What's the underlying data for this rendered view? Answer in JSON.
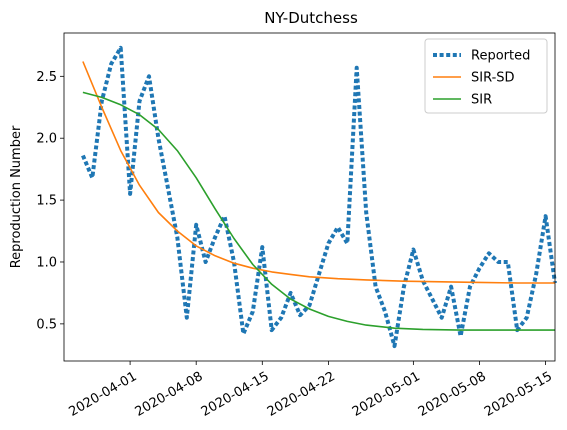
{
  "chart_data": {
    "type": "line",
    "title": "NY-Dutchess",
    "xlabel": "",
    "ylabel": "Reproduction Number",
    "x_ticks": [
      "2020-04-01",
      "2020-04-08",
      "2020-04-15",
      "2020-04-22",
      "2020-05-01",
      "2020-05-08",
      "2020-05-15"
    ],
    "y_ticks": [
      "0.5",
      "1.0",
      "1.5",
      "2.0",
      "2.5"
    ],
    "xlim": [
      "2020-03-25",
      "2020-05-16"
    ],
    "ylim": [
      0.2,
      2.85
    ],
    "grid": false,
    "legend_position": "top-right",
    "series": [
      {
        "name": "Reported",
        "style": "dotted",
        "color": "#1f77b4",
        "points": [
          [
            "2020-03-27",
            1.86
          ],
          [
            "2020-03-28",
            1.68
          ],
          [
            "2020-03-29",
            2.3
          ],
          [
            "2020-03-30",
            2.6
          ],
          [
            "2020-03-31",
            2.73
          ],
          [
            "2020-04-01",
            1.55
          ],
          [
            "2020-04-02",
            2.3
          ],
          [
            "2020-04-03",
            2.5
          ],
          [
            "2020-04-04",
            2.0
          ],
          [
            "2020-04-05",
            1.6
          ],
          [
            "2020-04-06",
            1.2
          ],
          [
            "2020-04-07",
            0.55
          ],
          [
            "2020-04-08",
            1.3
          ],
          [
            "2020-04-09",
            1.0
          ],
          [
            "2020-04-10",
            1.2
          ],
          [
            "2020-04-11",
            1.37
          ],
          [
            "2020-04-12",
            1.0
          ],
          [
            "2020-04-13",
            0.42
          ],
          [
            "2020-04-14",
            0.6
          ],
          [
            "2020-04-15",
            1.12
          ],
          [
            "2020-04-16",
            0.45
          ],
          [
            "2020-04-17",
            0.55
          ],
          [
            "2020-04-18",
            0.75
          ],
          [
            "2020-04-19",
            0.57
          ],
          [
            "2020-04-20",
            0.65
          ],
          [
            "2020-04-21",
            0.9
          ],
          [
            "2020-04-22",
            1.15
          ],
          [
            "2020-04-23",
            1.28
          ],
          [
            "2020-04-24",
            1.15
          ],
          [
            "2020-04-25",
            2.57
          ],
          [
            "2020-04-26",
            1.4
          ],
          [
            "2020-04-27",
            0.8
          ],
          [
            "2020-04-28",
            0.6
          ],
          [
            "2020-04-29",
            0.32
          ],
          [
            "2020-04-30",
            0.8
          ],
          [
            "2020-05-01",
            1.1
          ],
          [
            "2020-05-02",
            0.85
          ],
          [
            "2020-05-03",
            0.7
          ],
          [
            "2020-05-04",
            0.55
          ],
          [
            "2020-05-05",
            0.8
          ],
          [
            "2020-05-06",
            0.4
          ],
          [
            "2020-05-07",
            0.8
          ],
          [
            "2020-05-08",
            0.95
          ],
          [
            "2020-05-09",
            1.07
          ],
          [
            "2020-05-10",
            1.0
          ],
          [
            "2020-05-11",
            1.0
          ],
          [
            "2020-05-12",
            0.45
          ],
          [
            "2020-05-13",
            0.55
          ],
          [
            "2020-05-14",
            0.9
          ],
          [
            "2020-05-15",
            1.37
          ],
          [
            "2020-05-16",
            0.83
          ]
        ]
      },
      {
        "name": "SIR-SD",
        "style": "solid",
        "color": "#ff7f0e",
        "points": [
          [
            "2020-03-27",
            2.62
          ],
          [
            "2020-03-29",
            2.25
          ],
          [
            "2020-03-31",
            1.9
          ],
          [
            "2020-04-02",
            1.62
          ],
          [
            "2020-04-04",
            1.4
          ],
          [
            "2020-04-06",
            1.25
          ],
          [
            "2020-04-08",
            1.13
          ],
          [
            "2020-04-10",
            1.05
          ],
          [
            "2020-04-12",
            0.99
          ],
          [
            "2020-04-14",
            0.95
          ],
          [
            "2020-04-16",
            0.92
          ],
          [
            "2020-04-18",
            0.9
          ],
          [
            "2020-04-20",
            0.88
          ],
          [
            "2020-04-23",
            0.865
          ],
          [
            "2020-04-26",
            0.855
          ],
          [
            "2020-04-30",
            0.845
          ],
          [
            "2020-05-04",
            0.84
          ],
          [
            "2020-05-08",
            0.835
          ],
          [
            "2020-05-12",
            0.83
          ],
          [
            "2020-05-16",
            0.83
          ]
        ]
      },
      {
        "name": "SIR",
        "style": "solid",
        "color": "#2ca02c",
        "points": [
          [
            "2020-03-27",
            2.37
          ],
          [
            "2020-03-29",
            2.33
          ],
          [
            "2020-03-31",
            2.27
          ],
          [
            "2020-04-02",
            2.19
          ],
          [
            "2020-04-04",
            2.07
          ],
          [
            "2020-04-06",
            1.9
          ],
          [
            "2020-04-08",
            1.68
          ],
          [
            "2020-04-10",
            1.43
          ],
          [
            "2020-04-12",
            1.19
          ],
          [
            "2020-04-14",
            0.98
          ],
          [
            "2020-04-16",
            0.82
          ],
          [
            "2020-04-18",
            0.7
          ],
          [
            "2020-04-20",
            0.62
          ],
          [
            "2020-04-22",
            0.56
          ],
          [
            "2020-04-24",
            0.52
          ],
          [
            "2020-04-26",
            0.49
          ],
          [
            "2020-04-29",
            0.465
          ],
          [
            "2020-05-02",
            0.455
          ],
          [
            "2020-05-06",
            0.45
          ],
          [
            "2020-05-10",
            0.45
          ],
          [
            "2020-05-16",
            0.45
          ]
        ]
      }
    ]
  }
}
